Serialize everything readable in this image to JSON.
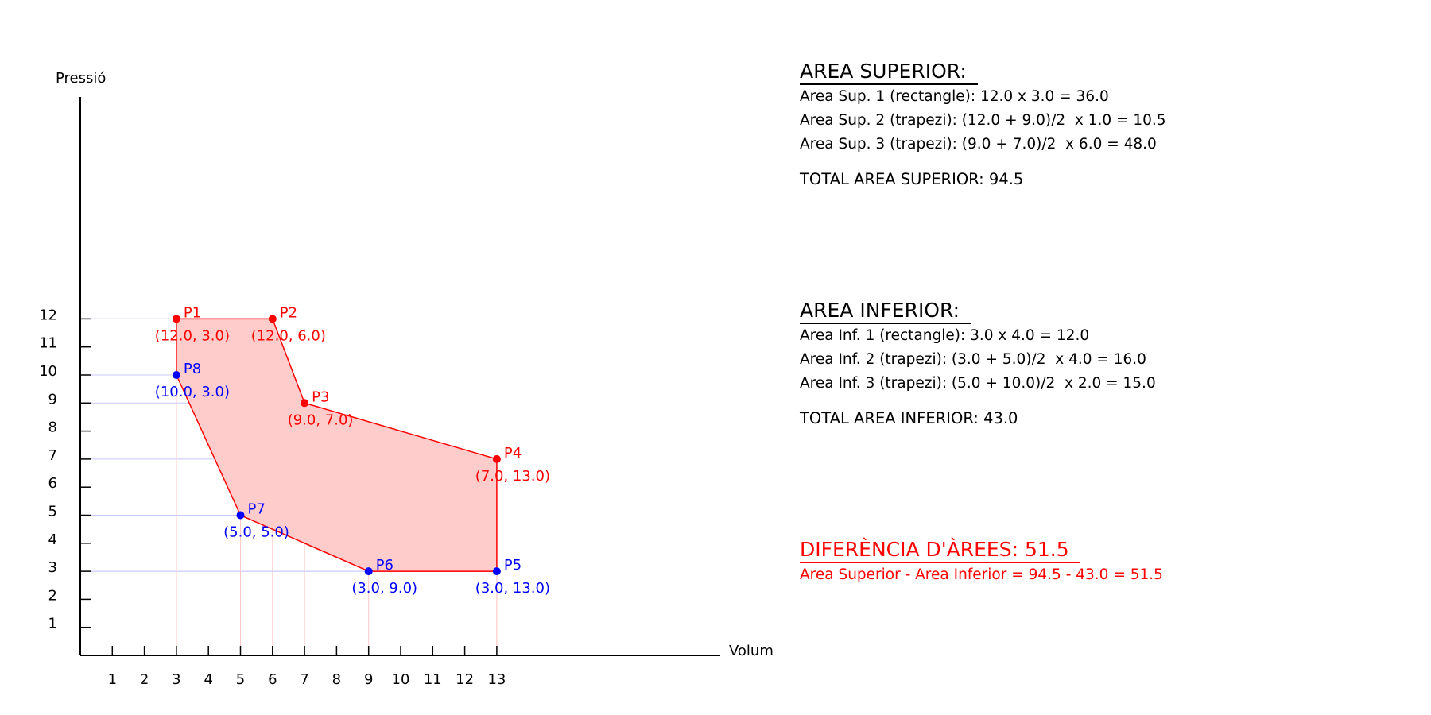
{
  "chart_data": {
    "type": "diagram",
    "title": "",
    "xlabel": "Volum",
    "ylabel": "Pressió",
    "xticks": [
      1,
      2,
      3,
      4,
      5,
      6,
      7,
      8,
      9,
      10,
      11,
      12,
      13
    ],
    "yticks": [
      1,
      2,
      3,
      4,
      5,
      6,
      7,
      8,
      9,
      10,
      11,
      12
    ],
    "points": [
      {
        "name": "P1",
        "x": 3,
        "y": 12,
        "label": "(12.0, 3.0)",
        "group": "upper"
      },
      {
        "name": "P2",
        "x": 6,
        "y": 12,
        "label": "(12.0, 6.0)",
        "group": "upper"
      },
      {
        "name": "P3",
        "x": 7,
        "y": 9,
        "label": "(9.0, 7.0)",
        "group": "upper"
      },
      {
        "name": "P4",
        "x": 13,
        "y": 7,
        "label": "(7.0, 13.0)",
        "group": "upper"
      },
      {
        "name": "P5",
        "x": 13,
        "y": 3,
        "label": "(3.0, 13.0)",
        "group": "lower"
      },
      {
        "name": "P6",
        "x": 9,
        "y": 3,
        "label": "(3.0, 9.0)",
        "group": "lower"
      },
      {
        "name": "P7",
        "x": 5,
        "y": 5,
        "label": "(5.0, 5.0)",
        "group": "lower"
      },
      {
        "name": "P8",
        "x": 3,
        "y": 10,
        "label": "(10.0, 3.0)",
        "group": "lower"
      }
    ],
    "colors": {
      "upper": "#ff0000",
      "lower": "#0000ff",
      "fill": "#ffcccc",
      "guide_h": "#c8c8ff",
      "guide_v": "#ffc8c8"
    }
  },
  "upper_area": {
    "heading": "AREA SUPERIOR:",
    "lines": [
      "Area Sup. 1 (rectangle): 12.0 x 3.0 = 36.0",
      "Area Sup. 2 (trapezi): (12.0 + 9.0)/2  x 1.0 = 10.5",
      "Area Sup. 3 (trapezi): (9.0 + 7.0)/2  x 6.0 = 48.0"
    ],
    "total": "TOTAL AREA SUPERIOR: 94.5"
  },
  "lower_area": {
    "heading": "AREA INFERIOR:",
    "lines": [
      "Area Inf. 1 (rectangle): 3.0 x 4.0 = 12.0",
      "Area Inf. 2 (trapezi): (3.0 + 5.0)/2  x 4.0 = 16.0",
      "Area Inf. 3 (trapezi): (5.0 + 10.0)/2  x 2.0 = 15.0"
    ],
    "total": "TOTAL AREA INFERIOR: 43.0"
  },
  "difference": {
    "heading": "DIFERÈNCIA D'ÀREES: 51.5",
    "line": "Area Superior - Area Inferior = 94.5 - 43.0 = 51.5"
  }
}
